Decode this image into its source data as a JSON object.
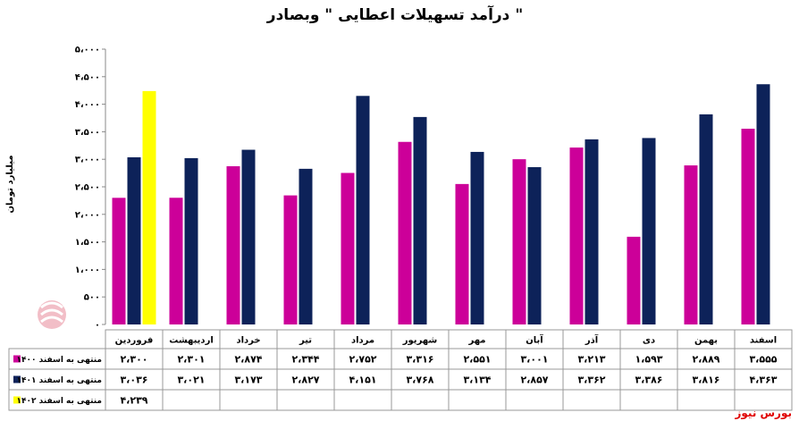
{
  "chart_data": {
    "type": "bar",
    "title": "درآمد تسهیلات اعطایی \" وبصادر \"",
    "ylabel": "میلیارد تومان",
    "ylim": [
      0,
      5000
    ],
    "yticks": [
      "۰",
      "۵۰۰",
      "۱،۰۰۰",
      "۱،۵۰۰",
      "۲،۰۰۰",
      "۲،۵۰۰",
      "۳،۰۰۰",
      "۳،۵۰۰",
      "۴،۰۰۰",
      "۴،۵۰۰",
      "۵،۰۰۰"
    ],
    "ytick_values": [
      0,
      500,
      1000,
      1500,
      2000,
      2500,
      3000,
      3500,
      4000,
      4500,
      5000
    ],
    "categories": [
      "فروردین",
      "اردیبهشت",
      "خرداد",
      "تیر",
      "مرداد",
      "شهریور",
      "مهر",
      "آبان",
      "آذر",
      "دی",
      "بهمن",
      "اسفند"
    ],
    "grid": false,
    "legend_position": "table-left",
    "series": [
      {
        "name": "منتهی به اسفند ۱۴۰۰",
        "color": "#cc0099",
        "values": [
          2300,
          2301,
          2874,
          2344,
          2752,
          3316,
          2551,
          3001,
          3213,
          1593,
          2889,
          3555
        ],
        "labels": [
          "۲،۳۰۰",
          "۲،۳۰۱",
          "۲،۸۷۴",
          "۲،۳۴۴",
          "۲،۷۵۲",
          "۳،۳۱۶",
          "۲،۵۵۱",
          "۳،۰۰۱",
          "۳،۲۱۳",
          "۱،۵۹۳",
          "۲،۸۸۹",
          "۳،۵۵۵"
        ]
      },
      {
        "name": "منتهی به اسفند ۱۴۰۱",
        "color": "#0d2259",
        "values": [
          3036,
          3021,
          3173,
          2827,
          4151,
          3768,
          3134,
          2857,
          3362,
          3386,
          3816,
          4363
        ],
        "labels": [
          "۳،۰۳۶",
          "۳،۰۲۱",
          "۳،۱۷۳",
          "۲،۸۲۷",
          "۴،۱۵۱",
          "۳،۷۶۸",
          "۳،۱۳۴",
          "۲،۸۵۷",
          "۳،۳۶۲",
          "۳،۳۸۶",
          "۳،۸۱۶",
          "۴،۳۶۳"
        ]
      },
      {
        "name": "منتهی به اسفند ۱۴۰۲",
        "color": "#ffff00",
        "values": [
          4239,
          null,
          null,
          null,
          null,
          null,
          null,
          null,
          null,
          null,
          null,
          null
        ],
        "labels": [
          "۴،۲۳۹",
          "",
          "",
          "",
          "",
          "",
          "",
          "",
          "",
          "",
          "",
          ""
        ]
      }
    ]
  },
  "source": "بورس نیوز",
  "watermark_text": "بورس نیوز"
}
